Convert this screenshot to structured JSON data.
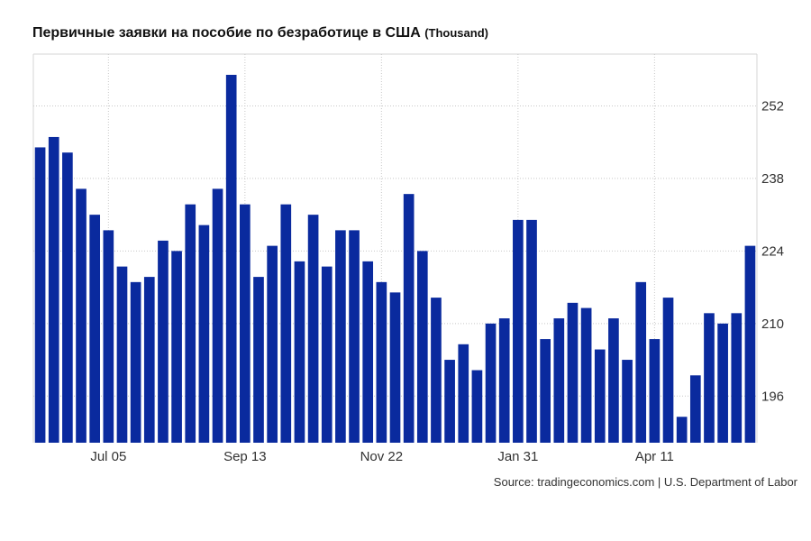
{
  "chart_data": {
    "type": "bar",
    "title": "Первичные заявки на пособие по безработице в США",
    "unit": "(Thousand)",
    "source": "Source: tradingeconomics.com | U.S. Department of Labor",
    "bar_color": "#0a2a9e",
    "grid": true,
    "ylim": [
      187,
      262
    ],
    "yticks": [
      196,
      210,
      224,
      238,
      252
    ],
    "xtick_labels": [
      {
        "label": "Jul 05",
        "index": 5
      },
      {
        "label": "Sep 13",
        "index": 15
      },
      {
        "label": "Nov 22",
        "index": 25
      },
      {
        "label": "Jan 31",
        "index": 35
      },
      {
        "label": "Apr 11",
        "index": 45
      }
    ],
    "values": [
      244,
      246,
      243,
      236,
      231,
      228,
      221,
      218,
      219,
      226,
      224,
      233,
      229,
      236,
      258,
      233,
      219,
      225,
      233,
      222,
      231,
      221,
      228,
      228,
      222,
      218,
      216,
      235,
      224,
      215,
      203,
      206,
      201,
      210,
      211,
      230,
      230,
      207,
      211,
      214,
      213,
      205,
      211,
      203,
      218,
      207,
      215,
      192,
      200,
      212,
      210,
      212,
      225
    ]
  }
}
